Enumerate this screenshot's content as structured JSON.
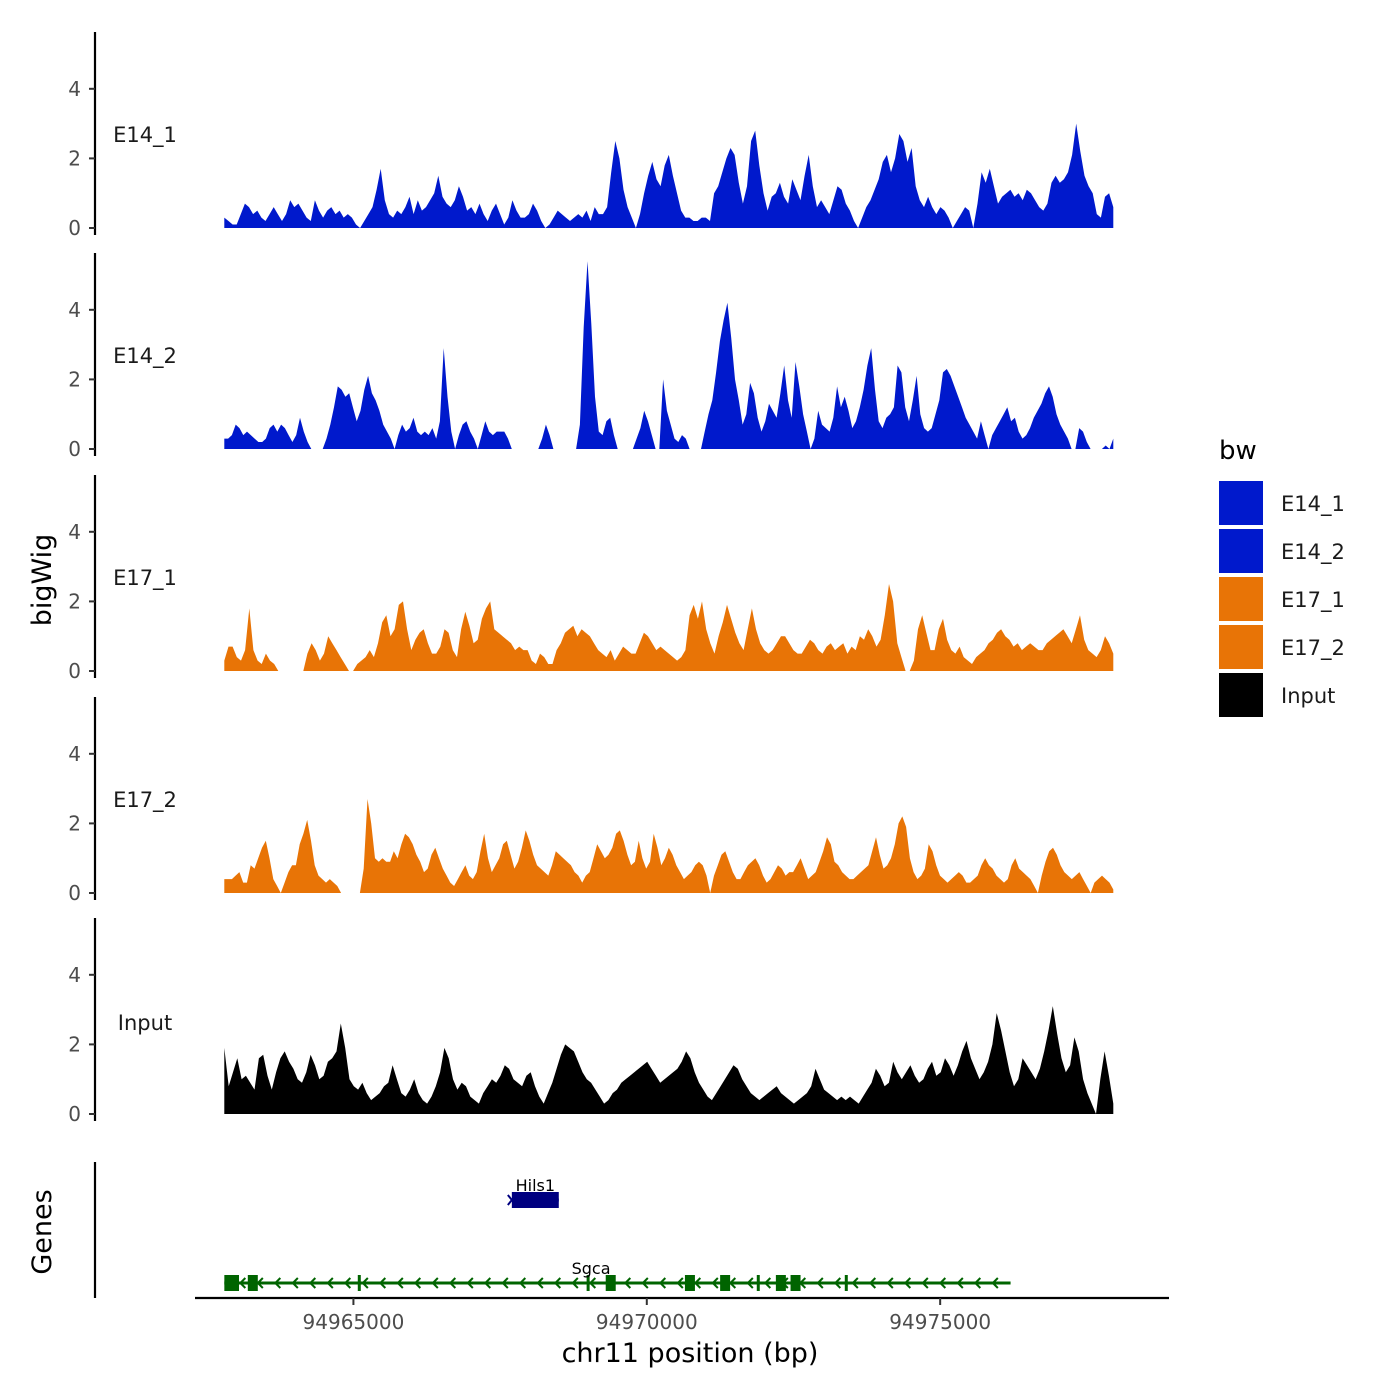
{
  "chart_data": {
    "type": "area",
    "title": "",
    "xlabel": "chr11 position (bp)",
    "ylabel": "bigWig",
    "genes_panel_label": "Genes",
    "xlim": [
      94962300,
      94978900
    ],
    "ylim": [
      0,
      5.6
    ],
    "x_ticks": [
      94965000,
      94970000,
      94975000
    ],
    "x_tick_labels": [
      "94965000",
      "94970000",
      "94975000"
    ],
    "y_ticks": [
      0,
      2,
      4
    ],
    "y_tick_labels": [
      "0",
      "2",
      "4"
    ],
    "region": [
      94962800,
      94977950
    ],
    "legend": {
      "title": "bw",
      "entries": [
        {
          "name": "E14_1",
          "color": "#0019CC"
        },
        {
          "name": "E14_2",
          "color": "#0019CC"
        },
        {
          "name": "E17_1",
          "color": "#E87406"
        },
        {
          "name": "E17_2",
          "color": "#E87406"
        },
        {
          "name": "Input",
          "color": "#000000"
        }
      ]
    },
    "series": [
      {
        "name": "E14_1",
        "color": "#0019CC",
        "values": [
          0.3,
          0.2,
          0.1,
          0.1,
          0.4,
          0.7,
          0.6,
          0.4,
          0.5,
          0.3,
          0.2,
          0.4,
          0.6,
          0.4,
          0.2,
          0.4,
          0.8,
          0.6,
          0.7,
          0.5,
          0.3,
          0.2,
          0.8,
          0.5,
          0.3,
          0.5,
          0.6,
          0.4,
          0.5,
          0.3,
          0.4,
          0.3,
          0.1,
          0.0,
          0.2,
          0.4,
          0.6,
          1.1,
          1.7,
          0.8,
          0.4,
          0.3,
          0.5,
          0.4,
          0.6,
          0.9,
          0.4,
          0.8,
          0.5,
          0.6,
          0.8,
          1.0,
          1.5,
          0.9,
          0.7,
          0.6,
          0.8,
          1.2,
          0.9,
          0.5,
          0.6,
          0.4,
          0.7,
          0.4,
          0.2,
          0.5,
          0.7,
          0.4,
          0.1,
          0.3,
          0.8,
          0.5,
          0.3,
          0.3,
          0.4,
          0.7,
          0.5,
          0.2,
          0.0,
          0.1,
          0.3,
          0.5,
          0.4,
          0.3,
          0.2,
          0.3,
          0.4,
          0.3,
          0.5,
          0.2,
          0.6,
          0.4,
          0.4,
          0.6,
          1.6,
          2.5,
          2.0,
          1.1,
          0.6,
          0.3,
          0.0,
          0.4,
          1.0,
          1.5,
          1.9,
          1.4,
          1.2,
          1.8,
          2.1,
          1.5,
          1.0,
          0.5,
          0.3,
          0.3,
          0.2,
          0.2,
          0.3,
          0.3,
          0.2,
          1.0,
          1.2,
          1.6,
          2.0,
          2.3,
          2.1,
          1.3,
          0.7,
          1.2,
          2.5,
          2.8,
          1.8,
          1.0,
          0.5,
          0.9,
          1.0,
          1.3,
          0.9,
          0.7,
          1.4,
          1.1,
          0.8,
          1.5,
          2.1,
          1.2,
          0.6,
          0.8,
          0.6,
          0.4,
          0.8,
          1.2,
          1.1,
          0.7,
          0.5,
          0.2,
          0.0,
          0.3,
          0.6,
          0.8,
          1.1,
          1.4,
          1.9,
          2.1,
          1.6,
          2.0,
          2.7,
          2.5,
          1.9,
          2.3,
          1.2,
          0.8,
          0.6,
          0.9,
          0.6,
          0.4,
          0.6,
          0.5,
          0.3,
          0.0,
          0.2,
          0.4,
          0.6,
          0.5,
          0.0,
          0.7,
          1.6,
          1.3,
          1.7,
          1.2,
          0.7,
          0.9,
          1.0,
          1.1,
          0.9,
          1.0,
          0.8,
          1.1,
          1.0,
          0.8,
          0.6,
          0.5,
          0.7,
          1.3,
          1.5,
          1.3,
          1.4,
          1.6,
          2.1,
          3.0,
          2.2,
          1.5,
          1.2,
          1.0,
          0.4,
          0.3,
          0.9,
          1.0,
          0.6
        ]
      },
      {
        "name": "E14_2",
        "color": "#0019CC",
        "values": [
          0.3,
          0.3,
          0.4,
          0.7,
          0.6,
          0.4,
          0.5,
          0.4,
          0.3,
          0.2,
          0.2,
          0.3,
          0.6,
          0.7,
          0.5,
          0.7,
          0.6,
          0.4,
          0.2,
          0.4,
          0.9,
          0.5,
          0.2,
          0.0,
          0.0,
          0.0,
          0.0,
          0.3,
          0.7,
          1.2,
          1.8,
          1.7,
          1.5,
          1.6,
          1.2,
          0.8,
          1.1,
          1.7,
          2.1,
          1.6,
          1.4,
          1.1,
          0.7,
          0.5,
          0.3,
          0.0,
          0.4,
          0.7,
          0.5,
          0.6,
          0.9,
          0.5,
          0.4,
          0.5,
          0.4,
          0.6,
          0.3,
          0.8,
          2.9,
          1.5,
          0.5,
          0.0,
          0.4,
          0.7,
          0.8,
          0.5,
          0.3,
          0.0,
          0.4,
          0.8,
          0.5,
          0.4,
          0.5,
          0.5,
          0.5,
          0.3,
          0.0,
          0.0,
          0.0,
          0.0,
          0.0,
          0.0,
          0.0,
          0.0,
          0.3,
          0.7,
          0.4,
          0.0,
          0.0,
          0.0,
          0.0,
          0.0,
          0.0,
          0.0,
          0.7,
          3.5,
          5.4,
          3.6,
          1.5,
          0.5,
          0.4,
          0.8,
          0.9,
          0.4,
          0.0,
          0.0,
          0.0,
          0.0,
          0.0,
          0.3,
          0.6,
          1.1,
          0.8,
          0.4,
          0.0,
          0.0,
          2.0,
          1.1,
          0.7,
          0.3,
          0.2,
          0.4,
          0.3,
          0.0,
          0.0,
          0.0,
          0.0,
          0.5,
          1.0,
          1.4,
          2.2,
          3.1,
          3.7,
          4.2,
          3.2,
          2.0,
          1.4,
          0.7,
          1.0,
          1.9,
          1.6,
          0.9,
          0.5,
          0.8,
          1.3,
          1.1,
          0.9,
          1.6,
          2.4,
          1.4,
          0.9,
          2.5,
          1.8,
          1.0,
          0.5,
          0.0,
          0.3,
          1.1,
          0.7,
          0.6,
          0.5,
          0.9,
          1.8,
          1.2,
          1.5,
          1.1,
          0.6,
          0.8,
          1.2,
          1.7,
          2.4,
          2.9,
          1.7,
          0.8,
          0.6,
          0.9,
          1.0,
          1.2,
          2.4,
          2.2,
          1.2,
          0.8,
          1.4,
          2.1,
          1.0,
          0.6,
          0.5,
          0.6,
          1.0,
          1.4,
          2.2,
          2.3,
          2.1,
          1.8,
          1.5,
          1.2,
          0.9,
          0.7,
          0.5,
          0.3,
          0.8,
          0.4,
          0.0,
          0.4,
          0.6,
          0.8,
          1.0,
          1.2,
          0.8,
          0.9,
          0.5,
          0.3,
          0.4,
          0.6,
          0.9,
          1.1,
          1.3,
          1.6,
          1.8,
          1.5,
          1.0,
          0.7,
          0.5,
          0.3,
          0.0,
          0.0,
          0.6,
          0.5,
          0.2,
          0.0,
          0.0,
          0.0,
          0.0,
          0.1,
          0.0,
          0.3
        ]
      },
      {
        "name": "E17_1",
        "color": "#E87406",
        "values": [
          0.3,
          0.7,
          0.7,
          0.4,
          0.3,
          0.6,
          1.8,
          0.6,
          0.3,
          0.2,
          0.5,
          0.3,
          0.2,
          0.0,
          0.0,
          0.0,
          0.0,
          0.0,
          0.0,
          0.0,
          0.5,
          0.8,
          0.6,
          0.3,
          0.5,
          1.0,
          0.8,
          0.6,
          0.4,
          0.2,
          0.0,
          0.0,
          0.2,
          0.3,
          0.4,
          0.6,
          0.4,
          0.8,
          1.4,
          1.6,
          1.0,
          1.2,
          1.9,
          2.0,
          1.2,
          0.6,
          0.9,
          1.1,
          1.2,
          0.8,
          0.5,
          0.5,
          0.7,
          1.2,
          1.1,
          0.6,
          0.4,
          1.2,
          1.7,
          1.3,
          0.8,
          0.9,
          1.5,
          1.8,
          2.0,
          1.2,
          1.1,
          1.0,
          0.9,
          0.8,
          0.6,
          0.7,
          0.6,
          0.6,
          0.3,
          0.2,
          0.5,
          0.4,
          0.2,
          0.2,
          0.6,
          0.8,
          1.1,
          1.2,
          1.3,
          1.0,
          1.2,
          1.1,
          1.0,
          0.8,
          0.6,
          0.5,
          0.4,
          0.6,
          0.3,
          0.5,
          0.7,
          0.6,
          0.5,
          0.5,
          0.8,
          1.1,
          1.0,
          0.8,
          0.6,
          0.7,
          0.6,
          0.5,
          0.4,
          0.3,
          0.4,
          0.6,
          1.6,
          1.9,
          1.5,
          2.0,
          1.2,
          0.8,
          0.5,
          1.0,
          1.4,
          1.9,
          1.5,
          1.1,
          0.8,
          0.6,
          1.2,
          1.8,
          1.2,
          0.8,
          0.6,
          0.5,
          0.6,
          0.8,
          1.0,
          1.0,
          0.8,
          0.6,
          0.5,
          0.5,
          0.7,
          0.9,
          0.8,
          0.6,
          0.5,
          0.7,
          0.8,
          0.6,
          0.7,
          0.8,
          0.5,
          0.7,
          0.6,
          1.0,
          0.9,
          1.2,
          1.0,
          0.7,
          0.9,
          1.6,
          2.5,
          2.0,
          0.8,
          0.4,
          0.0,
          0.0,
          0.3,
          1.2,
          1.6,
          1.1,
          0.6,
          0.6,
          1.2,
          1.5,
          0.9,
          0.6,
          0.5,
          0.7,
          0.4,
          0.3,
          0.2,
          0.4,
          0.5,
          0.6,
          0.8,
          0.9,
          1.1,
          1.2,
          1.0,
          0.9,
          0.7,
          0.8,
          0.6,
          0.7,
          0.8,
          0.7,
          0.6,
          0.6,
          0.8,
          0.9,
          1.0,
          1.1,
          1.2,
          1.0,
          0.8,
          1.2,
          1.6,
          0.9,
          0.6,
          0.5,
          0.4,
          0.6,
          1.0,
          0.8,
          0.5
        ]
      },
      {
        "name": "E17_2",
        "color": "#E87406",
        "values": [
          0.4,
          0.4,
          0.4,
          0.5,
          0.6,
          0.3,
          0.3,
          0.8,
          0.7,
          1.0,
          1.3,
          1.5,
          1.0,
          0.4,
          0.2,
          0.0,
          0.3,
          0.6,
          0.8,
          0.8,
          1.4,
          1.7,
          2.1,
          1.5,
          0.8,
          0.5,
          0.4,
          0.3,
          0.4,
          0.3,
          0.2,
          0.0,
          0.0,
          0.0,
          0.0,
          0.0,
          0.0,
          0.7,
          2.7,
          2.0,
          1.0,
          0.9,
          1.0,
          0.9,
          0.9,
          1.2,
          1.0,
          1.4,
          1.7,
          1.6,
          1.4,
          1.1,
          0.9,
          0.6,
          0.7,
          1.1,
          1.3,
          1.0,
          0.7,
          0.5,
          0.3,
          0.2,
          0.4,
          0.6,
          0.8,
          0.5,
          0.4,
          0.6,
          1.2,
          1.7,
          1.0,
          0.6,
          0.8,
          1.0,
          1.4,
          1.5,
          1.1,
          0.7,
          0.9,
          1.3,
          1.8,
          1.5,
          1.1,
          0.8,
          0.7,
          0.6,
          0.5,
          0.8,
          1.2,
          1.1,
          1.0,
          0.9,
          0.8,
          0.6,
          0.5,
          0.3,
          0.5,
          0.6,
          1.0,
          1.4,
          1.2,
          1.0,
          1.1,
          1.3,
          1.7,
          1.8,
          1.5,
          1.1,
          0.8,
          0.9,
          1.5,
          1.0,
          0.7,
          0.9,
          1.7,
          1.3,
          0.8,
          1.0,
          1.3,
          1.1,
          0.8,
          0.6,
          0.4,
          0.5,
          0.6,
          0.8,
          0.9,
          0.8,
          0.5,
          0.0,
          0.5,
          0.8,
          1.1,
          1.2,
          0.9,
          0.6,
          0.4,
          0.4,
          0.6,
          0.8,
          0.9,
          1.0,
          0.8,
          0.5,
          0.3,
          0.4,
          0.6,
          0.8,
          0.7,
          0.5,
          0.6,
          0.6,
          0.8,
          1.0,
          0.7,
          0.4,
          0.5,
          0.6,
          0.9,
          1.2,
          1.6,
          1.4,
          0.9,
          0.8,
          0.6,
          0.5,
          0.4,
          0.4,
          0.5,
          0.6,
          0.7,
          0.8,
          1.2,
          1.6,
          1.1,
          0.7,
          0.8,
          1.0,
          1.4,
          2.0,
          2.2,
          1.9,
          1.0,
          0.6,
          0.4,
          0.5,
          0.7,
          1.4,
          1.2,
          0.8,
          0.5,
          0.4,
          0.3,
          0.4,
          0.5,
          0.6,
          0.5,
          0.3,
          0.3,
          0.4,
          0.5,
          0.8,
          1.0,
          0.8,
          0.7,
          0.5,
          0.4,
          0.3,
          0.4,
          0.8,
          1.0,
          0.7,
          0.6,
          0.5,
          0.4,
          0.2,
          0.0,
          0.5,
          0.9,
          1.2,
          1.3,
          1.1,
          0.8,
          0.6,
          0.5,
          0.4,
          0.5,
          0.6,
          0.4,
          0.2,
          0.0,
          0.3,
          0.4,
          0.5,
          0.4,
          0.3,
          0.1
        ]
      },
      {
        "name": "Input",
        "color": "#000000",
        "values": [
          1.9,
          0.8,
          1.2,
          1.6,
          1.0,
          1.1,
          0.9,
          0.7,
          1.6,
          1.7,
          1.1,
          0.7,
          1.2,
          1.6,
          1.8,
          1.5,
          1.3,
          1.0,
          0.9,
          1.2,
          1.7,
          1.4,
          1.0,
          1.1,
          1.5,
          1.6,
          1.8,
          2.6,
          1.9,
          1.0,
          0.8,
          0.7,
          0.9,
          0.6,
          0.4,
          0.5,
          0.6,
          0.8,
          0.9,
          1.4,
          1.0,
          0.6,
          0.5,
          0.7,
          1.0,
          0.6,
          0.4,
          0.3,
          0.5,
          0.8,
          1.2,
          1.9,
          1.6,
          1.0,
          0.7,
          0.9,
          0.8,
          0.5,
          0.4,
          0.3,
          0.6,
          0.8,
          1.0,
          0.9,
          1.1,
          1.4,
          1.3,
          1.0,
          0.9,
          0.8,
          1.1,
          1.2,
          0.8,
          0.5,
          0.3,
          0.6,
          0.9,
          1.3,
          1.7,
          2.0,
          1.9,
          1.8,
          1.5,
          1.2,
          1.0,
          0.9,
          0.7,
          0.5,
          0.3,
          0.4,
          0.6,
          0.7,
          0.9,
          1.0,
          1.1,
          1.2,
          1.3,
          1.4,
          1.5,
          1.3,
          1.1,
          0.9,
          1.0,
          1.1,
          1.2,
          1.3,
          1.5,
          1.8,
          1.6,
          1.2,
          0.9,
          0.7,
          0.5,
          0.4,
          0.6,
          0.8,
          1.0,
          1.2,
          1.4,
          1.3,
          1.0,
          0.8,
          0.6,
          0.5,
          0.4,
          0.5,
          0.6,
          0.7,
          0.8,
          0.6,
          0.5,
          0.4,
          0.3,
          0.4,
          0.5,
          0.6,
          0.8,
          1.3,
          1.0,
          0.7,
          0.6,
          0.5,
          0.4,
          0.5,
          0.4,
          0.5,
          0.4,
          0.3,
          0.5,
          0.7,
          0.9,
          1.3,
          1.1,
          0.8,
          0.9,
          1.5,
          1.2,
          1.0,
          1.2,
          1.4,
          1.1,
          0.9,
          1.0,
          1.3,
          1.5,
          1.1,
          1.2,
          1.6,
          1.4,
          1.1,
          1.4,
          1.8,
          2.1,
          1.6,
          1.3,
          1.0,
          1.2,
          1.5,
          2.0,
          2.9,
          2.4,
          1.8,
          1.2,
          0.8,
          1.0,
          1.6,
          1.4,
          1.2,
          1.0,
          1.3,
          1.8,
          2.4,
          3.1,
          2.3,
          1.6,
          1.2,
          1.4,
          2.2,
          1.8,
          1.0,
          0.6,
          0.3,
          0.0,
          1.0,
          1.8,
          1.1,
          0.3
        ]
      }
    ],
    "genes": [
      {
        "name": "Hils1",
        "color": "#000080",
        "strand": "+",
        "start": 94967700,
        "end": 94968500,
        "exons": [
          [
            94967700,
            94968500
          ]
        ]
      },
      {
        "name": "Sgca",
        "color": "#006400",
        "strand": "-",
        "start": 94962800,
        "end": 94976200,
        "exons": [
          [
            94962800,
            94963050
          ],
          [
            94963200,
            94963350
          ],
          [
            94969300,
            94969450
          ],
          [
            94970650,
            94970750
          ],
          [
            94971250,
            94971350
          ],
          [
            94972200,
            94972350
          ],
          [
            94972450,
            94972550
          ]
        ],
        "marks": [
          94965100,
          94969000,
          94971900,
          94973400
        ]
      }
    ]
  }
}
